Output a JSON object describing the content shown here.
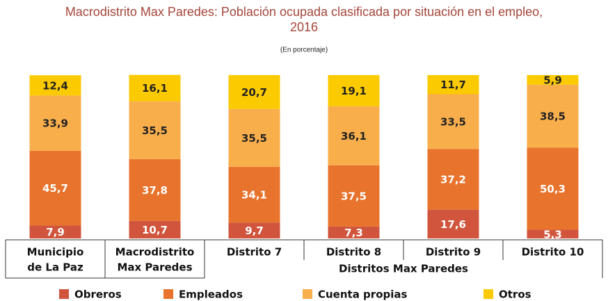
{
  "chart_data": {
    "type": "stacked_bar",
    "title": [
      "Macrodistrito Max Paredes: Población ocupada clasificada por situación en el empleo,",
      "2016"
    ],
    "subtitle": "(En porcentaje)",
    "categories": [
      [
        "Municipio",
        "de La Paz"
      ],
      [
        "Macrodistrito",
        "Max Paredes"
      ],
      [
        "Distrito 7"
      ],
      [
        "Distrito 8"
      ],
      [
        "Distrito 9"
      ],
      [
        "Distrito 10"
      ]
    ],
    "group_label": "Distritos Max Paredes",
    "ylim": [
      0,
      100
    ],
    "series": [
      {
        "name": "Obreros",
        "color": "#d0553c",
        "label_color": "#ffffff",
        "values": [
          7.9,
          10.7,
          9.7,
          7.3,
          17.6,
          5.3
        ],
        "value_labels": [
          "7,9",
          "10,7",
          "9,7",
          "7,3",
          "17,6",
          "5,3"
        ]
      },
      {
        "name": "Empleados",
        "color": "#e8732c",
        "label_color": "#ffffff",
        "values": [
          45.7,
          37.8,
          34.1,
          37.5,
          37.2,
          50.3
        ],
        "value_labels": [
          "45,7",
          "37,8",
          "34,1",
          "37,5",
          "37,2",
          "50,3"
        ]
      },
      {
        "name": "Cuenta propias",
        "color": "#f9ae4c",
        "label_color": "#222222",
        "values": [
          33.9,
          35.5,
          35.5,
          36.1,
          33.5,
          38.5
        ],
        "value_labels": [
          "33,9",
          "35,5",
          "35,5",
          "36,1",
          "33,5",
          "38,5"
        ]
      },
      {
        "name": "Otros",
        "color": "#fcca00",
        "label_color": "#222222",
        "values": [
          12.4,
          16.1,
          20.7,
          19.1,
          11.7,
          5.9
        ],
        "value_labels": [
          "12,4",
          "16,1",
          "20,7",
          "19,1",
          "11,7",
          "5,9"
        ]
      }
    ]
  }
}
